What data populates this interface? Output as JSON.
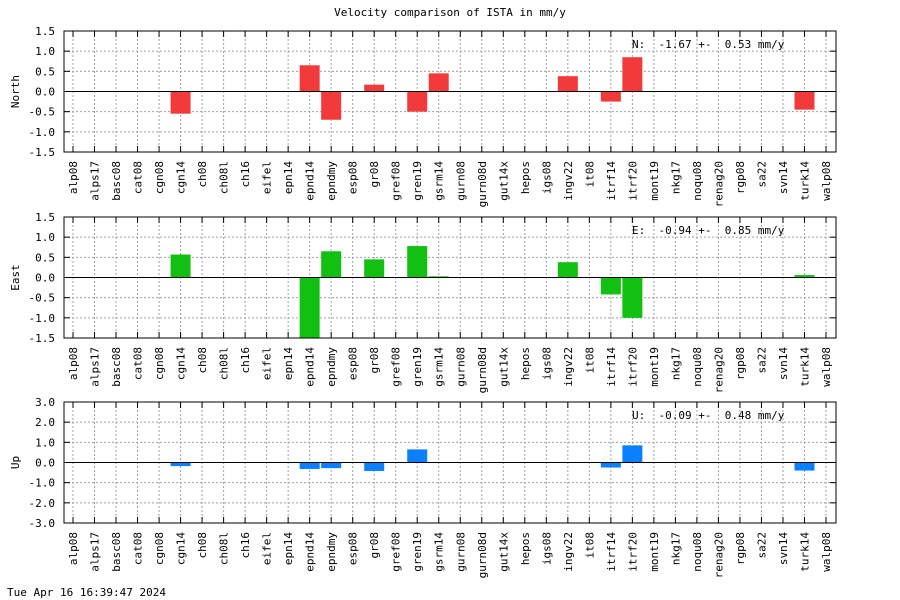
{
  "title": "Velocity comparison of ISTA in mm/y",
  "footer": "Tue Apr 16 16:39:47 2024",
  "chart_data": [
    {
      "type": "bar",
      "ylabel": "North",
      "annotation": "N:  -1.67 +-  0.53 mm/y",
      "ylim": [
        -1.5,
        1.5
      ],
      "yticks": [
        "1.5",
        "1.0",
        "0.5",
        "0.0",
        "-0.5",
        "-1.0",
        "-1.5"
      ],
      "color": "#f23a3a",
      "grid": true,
      "categories": [
        "alp08",
        "alps17",
        "basc08",
        "cat08",
        "cgn08",
        "cgn14",
        "ch08",
        "ch08l",
        "ch16",
        "eifel",
        "epn14",
        "epnd14",
        "epndmy",
        "esp08",
        "gr08",
        "gref08",
        "gren19",
        "gsrm14",
        "gurn08",
        "gurn08d",
        "gut14x",
        "hepos",
        "igs08",
        "ingv22",
        "it08",
        "itrf14",
        "itrf20",
        "mont19",
        "nkg17",
        "noqu08",
        "renag20",
        "rgp08",
        "sa22",
        "svn14",
        "turk14",
        "walp08"
      ],
      "values": [
        0,
        0,
        0,
        0,
        0,
        -0.55,
        0,
        0,
        0,
        0,
        0,
        0.65,
        -0.7,
        0,
        0.17,
        0,
        -0.5,
        0.45,
        0,
        0,
        0,
        0,
        0,
        0.38,
        0,
        -0.25,
        0.85,
        0,
        0,
        0,
        0,
        0,
        0,
        0,
        -0.45,
        0
      ]
    },
    {
      "type": "bar",
      "ylabel": "East",
      "annotation": "E:  -0.94 +-  0.85 mm/y",
      "ylim": [
        -1.5,
        1.5
      ],
      "yticks": [
        "1.5",
        "1.0",
        "0.5",
        "0.0",
        "-0.5",
        "-1.0",
        "-1.5"
      ],
      "color": "#11c011",
      "grid": true,
      "categories": [
        "alp08",
        "alps17",
        "basc08",
        "cat08",
        "cgn08",
        "cgn14",
        "ch08",
        "ch08l",
        "ch16",
        "eifel",
        "epn14",
        "epnd14",
        "epndmy",
        "esp08",
        "gr08",
        "gref08",
        "gren19",
        "gsrm14",
        "gurn08",
        "gurn08d",
        "gut14x",
        "hepos",
        "igs08",
        "ingv22",
        "it08",
        "itrf14",
        "itrf20",
        "mont19",
        "nkg17",
        "noqu08",
        "renag20",
        "rgp08",
        "sa22",
        "svn14",
        "turk14",
        "walp08"
      ],
      "values": [
        0,
        0,
        0,
        0,
        0,
        0.57,
        0,
        0,
        0,
        0,
        0,
        -1.5,
        0.65,
        0,
        0.45,
        0,
        0.78,
        0.03,
        0,
        0,
        0,
        0,
        0,
        0.38,
        0,
        -0.42,
        -1.0,
        0,
        0,
        0,
        0,
        0,
        0,
        0,
        0.06,
        0
      ]
    },
    {
      "type": "bar",
      "ylabel": "Up",
      "annotation": "U:  -0.09 +-  0.48 mm/y",
      "ylim": [
        -3.0,
        3.0
      ],
      "yticks": [
        "3.0",
        "2.0",
        "1.0",
        "0.0",
        "-1.0",
        "-2.0",
        "-3.0"
      ],
      "color": "#0a80ff",
      "grid": true,
      "categories": [
        "alp08",
        "alps17",
        "basc08",
        "cat08",
        "cgn08",
        "cgn14",
        "ch08",
        "ch08l",
        "ch16",
        "eifel",
        "epn14",
        "epnd14",
        "epndmy",
        "esp08",
        "gr08",
        "gref08",
        "gren19",
        "gsrm14",
        "gurn08",
        "gurn08d",
        "gut14x",
        "hepos",
        "igs08",
        "ingv22",
        "it08",
        "itrf14",
        "itrf20",
        "mont19",
        "nkg17",
        "noqu08",
        "renag20",
        "rgp08",
        "sa22",
        "svn14",
        "turk14",
        "walp08"
      ],
      "values": [
        0,
        0,
        0,
        0,
        0,
        -0.18,
        0,
        0,
        0,
        0,
        0,
        -0.32,
        -0.28,
        0,
        -0.42,
        0,
        0.65,
        0,
        0,
        0,
        0,
        0,
        0,
        0,
        0,
        -0.25,
        0.85,
        0,
        0,
        0,
        0,
        0,
        0,
        0,
        -0.4,
        0
      ]
    }
  ]
}
